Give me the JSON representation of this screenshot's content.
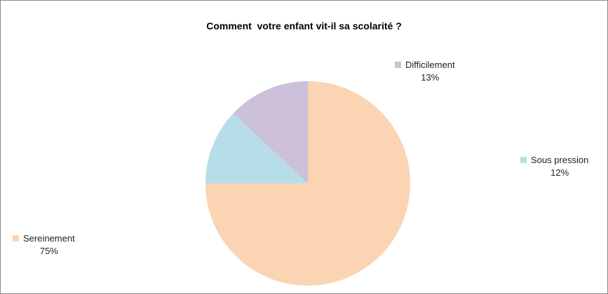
{
  "chart_data": {
    "type": "pie",
    "title": "Comment  votre enfant vit-il sa scolarité ?",
    "slices": [
      {
        "name": "Sereinement",
        "value": 75,
        "label": "75%",
        "color": "#fbd4b4"
      },
      {
        "name": "Sous pression",
        "value": 12,
        "label": "12%",
        "color": "#b7dee8"
      },
      {
        "name": "Difficilement",
        "value": 13,
        "label": "13%",
        "color": "#ccc0da"
      }
    ],
    "legend": "labels beside slices"
  }
}
